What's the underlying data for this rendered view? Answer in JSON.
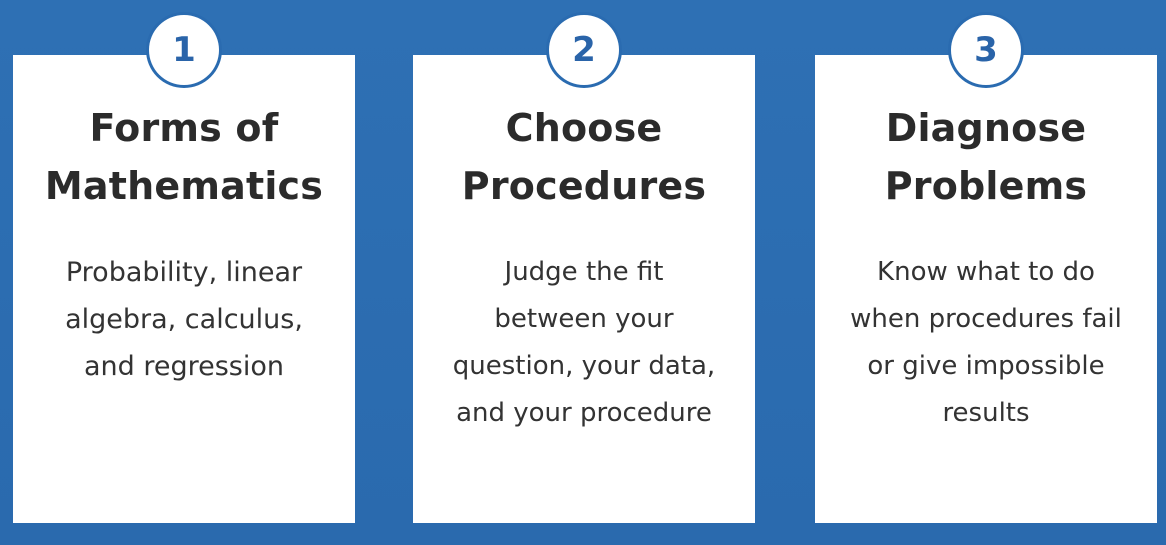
{
  "colors": {
    "background": "#2a6bb0",
    "card": "#ffffff",
    "badge_ring": "#2a6bb0",
    "badge_number": "#2a64a9",
    "title_text": "#2b2b2b",
    "body_text": "#333333"
  },
  "cards": [
    {
      "number": "1",
      "title": "Forms of\nMathematics",
      "description": "Probability, linear\nalgebra, calculus,\nand regression"
    },
    {
      "number": "2",
      "title": "Choose\nProcedures",
      "description": "Judge the fit\nbetween your\nquestion, your data,\nand your procedure"
    },
    {
      "number": "3",
      "title": "Diagnose\nProblems",
      "description": "Know what to do\nwhen procedures fail\nor give impossible\nresults"
    }
  ]
}
